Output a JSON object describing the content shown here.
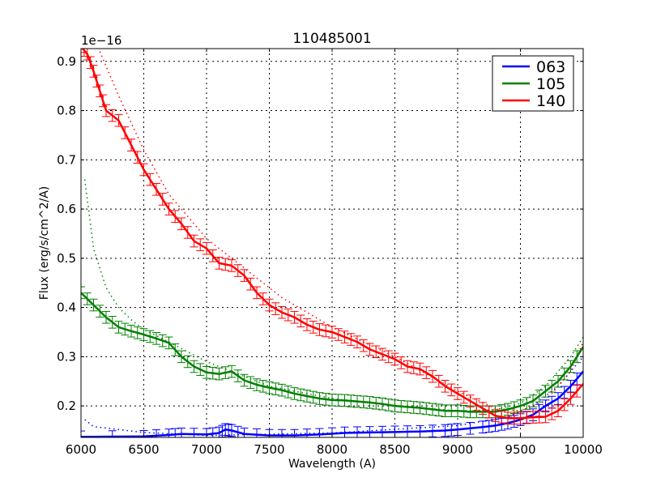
{
  "chart_data": {
    "type": "line",
    "title": "110485001",
    "xlabel": "Wavelength (A)",
    "ylabel": "Flux (erg/s/cm^2/A)",
    "y_offset_label": "1e−16",
    "xlim": [
      6000,
      10000
    ],
    "ylim": [
      0.136,
      0.926
    ],
    "xticks": [
      6000,
      6500,
      7000,
      7500,
      8000,
      8500,
      9000,
      9500,
      10000
    ],
    "yticks": [
      0.2,
      0.3,
      0.4,
      0.5,
      0.6,
      0.7,
      0.8,
      0.9
    ],
    "grid": true,
    "legend_position": "upper right",
    "series": [
      {
        "name": "063",
        "color": "#0000ff",
        "x": [
          6000,
          6500,
          6700,
          6800,
          7000,
          7100,
          7150,
          7200,
          7300,
          7500,
          7700,
          7900,
          8100,
          8300,
          8500,
          8700,
          8900,
          9000,
          9200,
          9300,
          9400,
          9500,
          9600,
          9700,
          9800,
          9900,
          10000
        ],
        "values": [
          0.137,
          0.138,
          0.141,
          0.143,
          0.142,
          0.145,
          0.152,
          0.15,
          0.143,
          0.14,
          0.14,
          0.142,
          0.145,
          0.146,
          0.147,
          0.148,
          0.15,
          0.152,
          0.157,
          0.16,
          0.165,
          0.172,
          0.182,
          0.2,
          0.215,
          0.24,
          0.27
        ],
        "model": {
          "x": [
            6030,
            6100,
            6300,
            6500,
            7000,
            8000,
            9000,
            9400,
            9600,
            9800,
            10000
          ],
          "values": [
            0.172,
            0.158,
            0.152,
            0.146,
            0.14,
            0.145,
            0.16,
            0.178,
            0.2,
            0.24,
            0.3
          ]
        }
      },
      {
        "name": "105",
        "color": "#008000",
        "x": [
          6000,
          6100,
          6200,
          6300,
          6400,
          6500,
          6600,
          6700,
          6800,
          6900,
          7000,
          7100,
          7200,
          7300,
          7400,
          7500,
          7600,
          7700,
          7800,
          7900,
          8000,
          8100,
          8200,
          8300,
          8400,
          8500,
          8600,
          8700,
          8800,
          8900,
          9000,
          9100,
          9200,
          9300,
          9400,
          9500,
          9600,
          9700,
          9800,
          9900,
          10000
        ],
        "values": [
          0.43,
          0.405,
          0.38,
          0.36,
          0.352,
          0.345,
          0.337,
          0.328,
          0.3,
          0.28,
          0.268,
          0.265,
          0.27,
          0.252,
          0.243,
          0.237,
          0.232,
          0.225,
          0.22,
          0.215,
          0.212,
          0.211,
          0.209,
          0.207,
          0.204,
          0.2,
          0.198,
          0.196,
          0.193,
          0.19,
          0.19,
          0.188,
          0.188,
          0.188,
          0.193,
          0.2,
          0.21,
          0.23,
          0.25,
          0.28,
          0.32
        ],
        "model": {
          "x": [
            6030,
            6100,
            6200,
            6300,
            6400,
            6500,
            6700,
            7000,
            7500,
            8000,
            8500,
            9000,
            9300,
            9500,
            9700,
            9900,
            10000
          ],
          "values": [
            0.66,
            0.52,
            0.44,
            0.4,
            0.375,
            0.355,
            0.33,
            0.29,
            0.24,
            0.215,
            0.2,
            0.19,
            0.192,
            0.205,
            0.24,
            0.3,
            0.34
          ]
        }
      },
      {
        "name": "140",
        "color": "#ff0000",
        "x": [
          6000,
          6050,
          6100,
          6150,
          6200,
          6300,
          6400,
          6500,
          6600,
          6700,
          6800,
          6900,
          7000,
          7100,
          7200,
          7300,
          7400,
          7500,
          7600,
          7700,
          7800,
          7900,
          8000,
          8100,
          8200,
          8300,
          8400,
          8500,
          8600,
          8700,
          8800,
          8900,
          9000,
          9100,
          9200,
          9300,
          9400,
          9500,
          9600,
          9700,
          9800,
          9900,
          10000
        ],
        "values": [
          0.93,
          0.915,
          0.88,
          0.84,
          0.8,
          0.78,
          0.73,
          0.68,
          0.64,
          0.6,
          0.57,
          0.535,
          0.52,
          0.49,
          0.485,
          0.465,
          0.43,
          0.405,
          0.39,
          0.38,
          0.365,
          0.355,
          0.35,
          0.34,
          0.33,
          0.315,
          0.305,
          0.295,
          0.28,
          0.275,
          0.26,
          0.24,
          0.225,
          0.21,
          0.195,
          0.18,
          0.175,
          0.175,
          0.177,
          0.178,
          0.19,
          0.215,
          0.245
        ],
        "model": {
          "x": [
            6150,
            6300,
            6500,
            6700,
            7000,
            7300,
            7600,
            8000,
            8500,
            9000,
            9300,
            9500,
            9700,
            9900,
            10000
          ],
          "values": [
            0.92,
            0.83,
            0.72,
            0.63,
            0.54,
            0.48,
            0.42,
            0.36,
            0.3,
            0.23,
            0.195,
            0.19,
            0.21,
            0.27,
            0.33
          ]
        }
      }
    ]
  }
}
